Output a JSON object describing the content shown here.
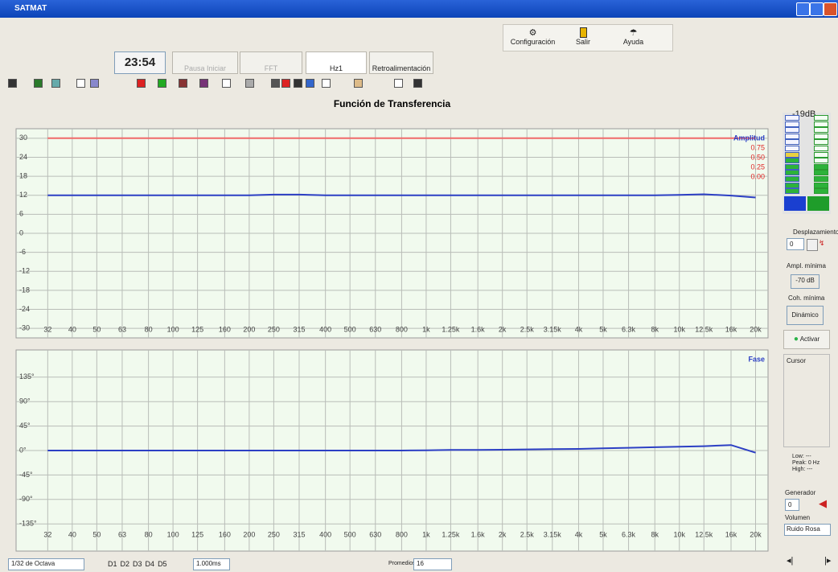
{
  "window": {
    "title": "SATMAT"
  },
  "top_buttons": [
    "Configuración",
    "Salir",
    "Ayuda"
  ],
  "clock": "23:54",
  "mode_buttons": [
    "Pausa Iniciar",
    "FFT",
    "Hz1",
    "Retroalimentación"
  ],
  "chart_data": [
    {
      "type": "line",
      "title": "Función de Transferencia",
      "label": "Amplitud",
      "x": [
        32,
        40,
        50,
        63,
        80,
        100,
        125,
        160,
        200,
        250,
        315,
        400,
        500,
        630,
        800,
        1000,
        1250,
        1600,
        2000,
        2500,
        3150,
        4000,
        5000,
        6300,
        8000,
        10000,
        12500,
        16000,
        20000
      ],
      "log_x": true,
      "xlim": [
        24,
        22400
      ],
      "xticks": [
        32,
        40,
        50,
        63,
        80,
        100,
        125,
        160,
        200,
        250,
        315,
        400,
        500,
        630,
        800,
        {
          "value": 1000,
          "label": "1k"
        },
        {
          "value": 1250,
          "label": "1.25k"
        },
        {
          "value": 1600,
          "label": "1.6k"
        },
        {
          "value": 2000,
          "label": "2k"
        },
        {
          "value": 2500,
          "label": "2.5k"
        },
        {
          "value": 3150,
          "label": "3.15k"
        },
        {
          "value": 4000,
          "label": "4k"
        },
        {
          "value": 5000,
          "label": "5k"
        },
        {
          "value": 6300,
          "label": "6.3k"
        },
        {
          "value": 8000,
          "label": "8k"
        },
        {
          "value": 10000,
          "label": "10k"
        },
        {
          "value": 12500,
          "label": "12.5k"
        },
        {
          "value": 16000,
          "label": "16k"
        },
        {
          "value": 20000,
          "label": "20k"
        }
      ],
      "ylim": [
        -33,
        33
      ],
      "yticks": [
        30,
        24,
        18,
        12,
        6,
        0,
        -6,
        -12,
        -18,
        -24,
        -30
      ],
      "grid": true,
      "series": [
        {
          "color": "#f06a6a",
          "values": [
            30,
            30,
            30,
            30,
            30,
            30,
            30,
            30,
            30,
            30,
            30,
            30,
            30,
            30,
            30,
            30,
            30,
            30,
            30,
            30,
            30,
            30,
            30,
            30,
            30,
            30,
            30,
            30,
            30
          ]
        },
        {
          "color": "#2c3fc4",
          "values": [
            12,
            12,
            12,
            12,
            12,
            12,
            12,
            12,
            12,
            12.2,
            12.2,
            12,
            12,
            12,
            12,
            12,
            12,
            12,
            12,
            12,
            12,
            12,
            12,
            12,
            12,
            12.1,
            12.3,
            11.9,
            11.3
          ]
        }
      ],
      "coherence_labels": [
        "0.75",
        "0.50",
        "0.25",
        "0.00"
      ],
      "coherence_color": "#e02828"
    },
    {
      "type": "line",
      "label": "Fase",
      "x": [
        32,
        40,
        50,
        63,
        80,
        100,
        125,
        160,
        200,
        250,
        315,
        400,
        500,
        630,
        800,
        1000,
        1250,
        1600,
        2000,
        2500,
        3150,
        4000,
        5000,
        6300,
        8000,
        10000,
        12500,
        16000,
        20000
      ],
      "log_x": true,
      "xlim": [
        24,
        22400
      ],
      "xticks": [
        32,
        40,
        50,
        63,
        80,
        100,
        125,
        160,
        200,
        250,
        315,
        400,
        500,
        630,
        800,
        {
          "value": 1000,
          "label": "1k"
        },
        {
          "value": 1250,
          "label": "1.25k"
        },
        {
          "value": 1600,
          "label": "1.6k"
        },
        {
          "value": 2000,
          "label": "2k"
        },
        {
          "value": 2500,
          "label": "2.5k"
        },
        {
          "value": 3150,
          "label": "3.15k"
        },
        {
          "value": 4000,
          "label": "4k"
        },
        {
          "value": 5000,
          "label": "5k"
        },
        {
          "value": 6300,
          "label": "6.3k"
        },
        {
          "value": 8000,
          "label": "8k"
        },
        {
          "value": 10000,
          "label": "10k"
        },
        {
          "value": 12500,
          "label": "12.5k"
        },
        {
          "value": 16000,
          "label": "16k"
        },
        {
          "value": 20000,
          "label": "20k"
        }
      ],
      "ylim": [
        -185,
        185
      ],
      "yticks": [
        {
          "value": 135,
          "label": "135°"
        },
        {
          "value": 90,
          "label": "90°"
        },
        {
          "value": 45,
          "label": "45°"
        },
        {
          "value": 0,
          "label": "0°"
        },
        {
          "value": -45,
          "label": "-45°"
        },
        {
          "value": -90,
          "label": "-90°"
        },
        {
          "value": -135,
          "label": "-135°"
        }
      ],
      "grid": true,
      "series": [
        {
          "color": "#2c3fc4",
          "values": [
            0,
            0,
            0,
            0,
            0,
            0,
            0,
            0,
            0,
            0,
            0,
            0,
            0,
            0,
            0,
            0.5,
            1,
            1,
            1.5,
            2,
            2.5,
            3,
            4,
            5,
            6,
            7,
            8,
            10,
            -4
          ]
        }
      ]
    }
  ],
  "side_panel": {
    "level": "-19dB",
    "offset_label": "Desplazamiento",
    "offset_value": "0",
    "min_amp_label": "Ampl. mínima",
    "min_amp_value": "-70 dB",
    "min_coh_label": "Coh. mínima",
    "min_coh_value": "Dinámico",
    "activate": "Activar",
    "cursor": "Cursor",
    "low": "Low: ---",
    "peak": "Peak: 0 Hz",
    "high": "High: ---",
    "generator_label": "Generador",
    "generator_value": "0",
    "volume_label": "Volumen",
    "volume_value": "Ruido Rosa"
  },
  "bottom_bar": {
    "resolution": "1/32 de Octava",
    "channels": [
      "D1",
      "D2",
      "D3",
      "D4",
      "D5"
    ],
    "delay": "1.000ms",
    "averages_label": "Promedios",
    "averages_value": "16"
  }
}
